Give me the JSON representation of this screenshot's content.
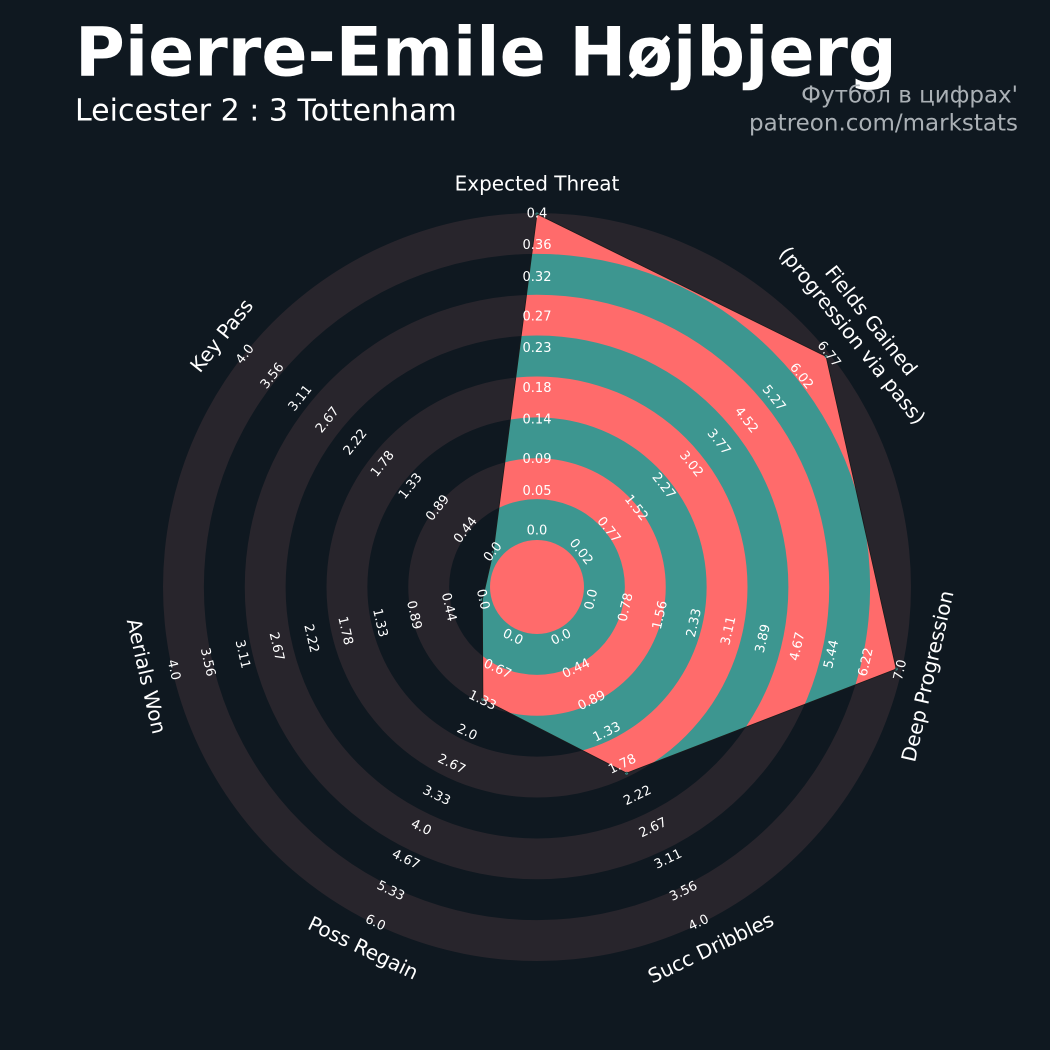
{
  "chart_data": {
    "type": "radar",
    "title": "Pierre-Emile Højbjerg",
    "subtitle": "Leicester 2 : 3 Tottenham",
    "credits": [
      "Футбол в цифрах'",
      "patreon.com/markstats"
    ],
    "categories": [
      [
        "Expected Threat"
      ],
      [
        "Fields Gained",
        "(progression via pass)"
      ],
      [
        "Deep Progression"
      ],
      [
        "Succ Dribbles"
      ],
      [
        "Poss Regain"
      ],
      [
        "Aerials Won"
      ],
      [
        "Key Pass"
      ]
    ],
    "values": [
      0.4,
      6.7,
      6.9,
      1.9,
      1.3,
      0,
      0
    ],
    "ranges": [
      [
        0,
        0.4
      ],
      [
        0.02,
        6.77
      ],
      [
        0,
        7
      ],
      [
        0,
        4
      ],
      [
        0,
        6
      ],
      [
        0,
        4
      ],
      [
        0,
        4
      ]
    ],
    "rticks": [
      [
        {
          "value": 0,
          "label": "0.0"
        },
        0.05,
        0.09,
        0.14,
        0.18,
        0.23,
        0.27,
        0.32,
        0.36,
        0.4
      ],
      [
        0.02,
        0.77,
        1.52,
        2.27,
        3.02,
        3.77,
        4.52,
        5.27,
        6.02,
        6.77
      ],
      [
        {
          "value": 0,
          "label": "0.0"
        },
        0.78,
        1.56,
        2.33,
        3.11,
        3.89,
        4.67,
        5.44,
        6.22,
        {
          "value": 7,
          "label": "7.0"
        }
      ],
      [
        {
          "value": 0,
          "label": "0.0"
        },
        0.44,
        0.89,
        1.33,
        1.78,
        2.22,
        2.67,
        3.11,
        3.56,
        {
          "value": 4,
          "label": "4.0"
        }
      ],
      [
        {
          "value": 0,
          "label": "0.0"
        },
        0.67,
        1.33,
        {
          "value": 2,
          "label": "2.0"
        },
        2.67,
        3.33,
        {
          "value": 4,
          "label": "4.0"
        },
        4.67,
        5.33,
        {
          "value": 6,
          "label": "6.0"
        }
      ],
      [
        {
          "value": 0,
          "label": "0.0"
        },
        0.44,
        0.89,
        1.33,
        1.78,
        2.22,
        2.67,
        3.11,
        3.56,
        {
          "value": 4,
          "label": "4.0"
        }
      ],
      [
        {
          "value": 0,
          "label": "0.0"
        },
        0.44,
        0.89,
        1.33,
        1.78,
        2.22,
        2.67,
        3.11,
        3.56,
        {
          "value": 4,
          "label": "4.0"
        }
      ]
    ],
    "color": "#3d9690",
    "alt_color": "#ff6b6b",
    "ring_color": "#28252c"
  }
}
